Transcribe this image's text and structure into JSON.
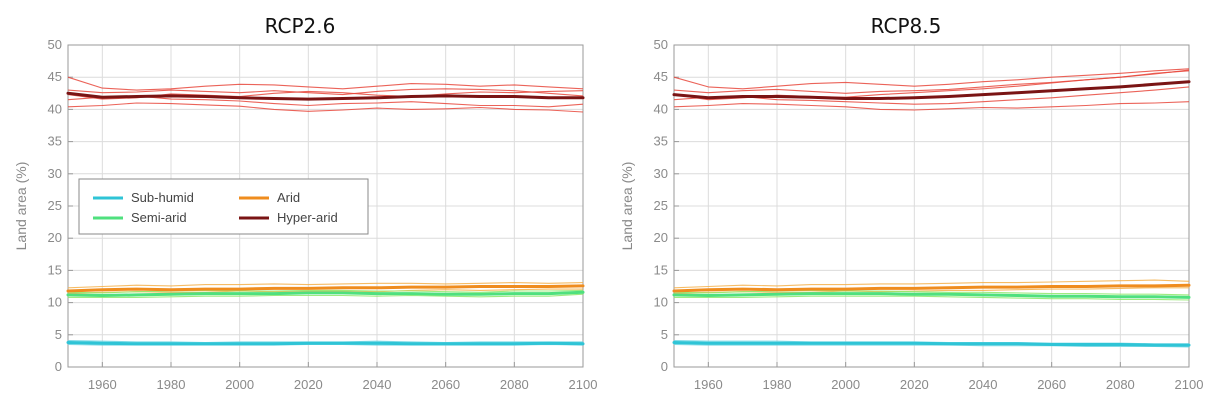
{
  "colors": {
    "sub_humid": "#2fc4d6",
    "semi_arid": "#4fe07e",
    "arid": "#ef8c1e",
    "hyper_arid": "#7a1414",
    "hyper_arid_members": "#e8483c",
    "arid_members": "#f4b04a",
    "semi_arid_members": "#8ee86a",
    "sub_humid_members": "#6ad4e2",
    "grid": "#dcdcdc",
    "axis": "#9a9a9a"
  },
  "legend": [
    {
      "label": "Sub-humid",
      "color": "#2fc4d6"
    },
    {
      "label": "Arid",
      "color": "#ef8c1e"
    },
    {
      "label": "Semi-arid",
      "color": "#4fe07e"
    },
    {
      "label": "Hyper-arid",
      "color": "#7a1414"
    }
  ],
  "chart_data": [
    {
      "type": "line",
      "title": "RCP2.6",
      "xlabel": "",
      "ylabel": "Land area (%)",
      "xlim": [
        1950,
        2100
      ],
      "ylim": [
        0,
        50
      ],
      "xticks": [
        1960,
        1980,
        2000,
        2020,
        2040,
        2060,
        2080,
        2100
      ],
      "yticks": [
        0,
        5,
        10,
        15,
        20,
        25,
        30,
        35,
        40,
        45,
        50
      ],
      "grid": true,
      "legend_position": "middle-left",
      "x": [
        1950,
        1960,
        1970,
        1980,
        1990,
        2000,
        2010,
        2020,
        2030,
        2040,
        2050,
        2060,
        2070,
        2080,
        2090,
        2100
      ],
      "series": [
        {
          "name": "Sub-humid",
          "values": [
            3.8,
            3.7,
            3.6,
            3.6,
            3.6,
            3.6,
            3.6,
            3.7,
            3.7,
            3.7,
            3.6,
            3.6,
            3.6,
            3.6,
            3.7,
            3.6
          ]
        },
        {
          "name": "Semi-arid",
          "values": [
            11.2,
            11.1,
            11.2,
            11.3,
            11.4,
            11.4,
            11.4,
            11.5,
            11.5,
            11.4,
            11.4,
            11.3,
            11.3,
            11.4,
            11.4,
            11.6
          ]
        },
        {
          "name": "Arid",
          "values": [
            11.8,
            12.0,
            12.1,
            12.0,
            12.1,
            12.1,
            12.2,
            12.2,
            12.3,
            12.3,
            12.4,
            12.4,
            12.5,
            12.5,
            12.5,
            12.6
          ]
        },
        {
          "name": "Hyper-arid",
          "values": [
            42.5,
            41.9,
            42.0,
            42.1,
            42.0,
            41.8,
            41.7,
            41.6,
            41.7,
            41.8,
            42.0,
            42.1,
            42.0,
            42.0,
            41.8,
            41.8
          ]
        }
      ],
      "members": [
        {
          "group": "hyper_arid",
          "values": [
            45.0,
            43.3,
            43.0,
            43.2,
            43.6,
            43.9,
            43.8,
            43.5,
            43.2,
            43.6,
            44.0,
            43.9,
            43.6,
            43.8,
            43.5,
            43.2
          ]
        },
        {
          "group": "hyper_arid",
          "values": [
            43.0,
            42.6,
            42.7,
            43.0,
            42.8,
            42.6,
            42.9,
            42.6,
            42.3,
            42.8,
            43.1,
            43.2,
            43.1,
            42.9,
            42.5,
            42.1
          ]
        },
        {
          "group": "hyper_arid",
          "values": [
            41.5,
            41.9,
            42.1,
            41.6,
            41.5,
            41.3,
            40.9,
            40.6,
            40.9,
            41.0,
            41.2,
            40.9,
            40.6,
            40.6,
            40.4,
            40.8
          ]
        },
        {
          "group": "hyper_arid",
          "values": [
            40.4,
            40.6,
            41.0,
            40.9,
            40.7,
            40.5,
            40.0,
            39.7,
            39.9,
            40.2,
            40.0,
            40.1,
            40.3,
            40.0,
            39.9,
            39.6
          ]
        },
        {
          "group": "hyper_arid",
          "values": [
            42.3,
            41.6,
            41.8,
            42.4,
            42.2,
            42.0,
            42.5,
            42.8,
            42.6,
            42.2,
            42.0,
            42.4,
            42.7,
            42.6,
            42.8,
            42.9
          ]
        },
        {
          "group": "arid",
          "values": [
            12.3,
            12.5,
            12.7,
            12.6,
            12.8,
            12.8,
            12.9,
            12.8,
            12.9,
            13.0,
            13.0,
            12.9,
            13.0,
            13.1,
            13.0,
            13.1
          ]
        },
        {
          "group": "arid",
          "values": [
            11.4,
            11.6,
            11.7,
            11.6,
            11.6,
            11.8,
            11.7,
            11.8,
            11.8,
            11.7,
            11.9,
            12.0,
            11.9,
            12.0,
            12.1,
            12.1
          ]
        },
        {
          "group": "semi_arid",
          "values": [
            11.6,
            11.5,
            11.7,
            11.8,
            11.9,
            11.8,
            11.8,
            11.9,
            11.9,
            11.8,
            11.8,
            11.7,
            11.6,
            11.8,
            11.8,
            11.9
          ]
        },
        {
          "group": "semi_arid",
          "values": [
            10.8,
            10.8,
            10.8,
            10.9,
            11.0,
            11.0,
            11.1,
            11.1,
            11.1,
            11.0,
            11.1,
            11.0,
            10.9,
            11.0,
            11.0,
            11.3
          ]
        },
        {
          "group": "sub_humid",
          "values": [
            4.1,
            4.0,
            3.9,
            3.9,
            3.8,
            3.9,
            3.9,
            3.9,
            3.9,
            4.0,
            3.9,
            3.8,
            3.9,
            3.9,
            3.9,
            3.9
          ]
        },
        {
          "group": "sub_humid",
          "values": [
            3.5,
            3.4,
            3.4,
            3.4,
            3.4,
            3.4,
            3.4,
            3.5,
            3.5,
            3.4,
            3.4,
            3.4,
            3.4,
            3.4,
            3.5,
            3.4
          ]
        }
      ]
    },
    {
      "type": "line",
      "title": "RCP8.5",
      "xlabel": "",
      "ylabel": "Land area (%)",
      "xlim": [
        1950,
        2100
      ],
      "ylim": [
        0,
        50
      ],
      "xticks": [
        1960,
        1980,
        2000,
        2020,
        2040,
        2060,
        2080,
        2100
      ],
      "yticks": [
        0,
        5,
        10,
        15,
        20,
        25,
        30,
        35,
        40,
        45,
        50
      ],
      "grid": true,
      "x": [
        1950,
        1960,
        1970,
        1980,
        1990,
        2000,
        2010,
        2020,
        2030,
        2040,
        2050,
        2060,
        2070,
        2080,
        2090,
        2100
      ],
      "series": [
        {
          "name": "Sub-humid",
          "values": [
            3.8,
            3.7,
            3.7,
            3.7,
            3.7,
            3.7,
            3.7,
            3.7,
            3.6,
            3.6,
            3.6,
            3.5,
            3.5,
            3.5,
            3.4,
            3.4
          ]
        },
        {
          "name": "Semi-arid",
          "values": [
            11.2,
            11.1,
            11.2,
            11.3,
            11.4,
            11.4,
            11.4,
            11.3,
            11.3,
            11.2,
            11.1,
            11.0,
            11.0,
            10.9,
            10.9,
            10.8
          ]
        },
        {
          "name": "Arid",
          "values": [
            11.8,
            12.0,
            12.1,
            12.0,
            12.1,
            12.1,
            12.2,
            12.2,
            12.3,
            12.4,
            12.4,
            12.5,
            12.5,
            12.6,
            12.6,
            12.7
          ]
        },
        {
          "name": "Hyper-arid",
          "values": [
            42.3,
            41.8,
            42.0,
            42.0,
            41.9,
            41.7,
            41.7,
            41.8,
            42.0,
            42.3,
            42.6,
            42.9,
            43.2,
            43.5,
            43.9,
            44.3
          ]
        }
      ],
      "members": [
        {
          "group": "hyper_arid",
          "values": [
            45.0,
            43.5,
            43.2,
            43.6,
            44.0,
            44.2,
            43.9,
            43.6,
            43.9,
            44.3,
            44.6,
            45.0,
            45.3,
            45.6,
            46.0,
            46.3
          ]
        },
        {
          "group": "hyper_arid",
          "values": [
            43.0,
            42.6,
            42.9,
            43.1,
            42.8,
            42.5,
            42.8,
            42.9,
            43.1,
            43.5,
            43.9,
            44.2,
            44.6,
            45.0,
            45.5,
            46.1
          ]
        },
        {
          "group": "hyper_arid",
          "values": [
            41.5,
            41.9,
            42.0,
            41.5,
            41.4,
            41.2,
            41.0,
            40.8,
            40.9,
            41.2,
            41.5,
            41.8,
            42.2,
            42.6,
            43.0,
            43.5
          ]
        },
        {
          "group": "hyper_arid",
          "values": [
            40.4,
            40.6,
            40.9,
            40.8,
            40.6,
            40.4,
            40.0,
            39.9,
            40.1,
            40.3,
            40.2,
            40.4,
            40.6,
            40.9,
            41.0,
            41.2
          ]
        },
        {
          "group": "hyper_arid",
          "values": [
            42.3,
            41.5,
            41.8,
            42.2,
            42.0,
            41.9,
            42.3,
            42.6,
            42.9,
            43.2,
            43.6,
            44.1,
            44.6,
            45.0,
            45.6,
            46.0
          ]
        },
        {
          "group": "arid",
          "values": [
            12.3,
            12.5,
            12.7,
            12.6,
            12.8,
            12.8,
            12.9,
            12.9,
            13.0,
            13.1,
            13.1,
            13.2,
            13.3,
            13.4,
            13.5,
            13.3
          ]
        },
        {
          "group": "arid",
          "values": [
            11.4,
            11.6,
            11.7,
            11.6,
            11.6,
            11.8,
            11.7,
            11.8,
            11.9,
            11.9,
            12.0,
            12.1,
            12.1,
            12.2,
            12.3,
            12.3
          ]
        },
        {
          "group": "semi_arid",
          "values": [
            11.6,
            11.5,
            11.7,
            11.8,
            11.9,
            11.8,
            11.8,
            11.7,
            11.6,
            11.6,
            11.5,
            11.4,
            11.4,
            11.3,
            11.3,
            11.2
          ]
        },
        {
          "group": "semi_arid",
          "values": [
            10.8,
            10.8,
            10.8,
            10.9,
            11.0,
            11.0,
            11.0,
            11.0,
            10.9,
            10.8,
            10.7,
            10.6,
            10.6,
            10.5,
            10.5,
            10.4
          ]
        },
        {
          "group": "sub_humid",
          "values": [
            4.1,
            4.0,
            4.0,
            4.0,
            3.9,
            3.9,
            3.9,
            3.9,
            3.8,
            3.8,
            3.8,
            3.7,
            3.7,
            3.7,
            3.6,
            3.6
          ]
        },
        {
          "group": "sub_humid",
          "values": [
            3.5,
            3.4,
            3.4,
            3.4,
            3.4,
            3.4,
            3.4,
            3.4,
            3.4,
            3.3,
            3.3,
            3.3,
            3.2,
            3.2,
            3.2,
            3.1
          ]
        }
      ]
    }
  ]
}
